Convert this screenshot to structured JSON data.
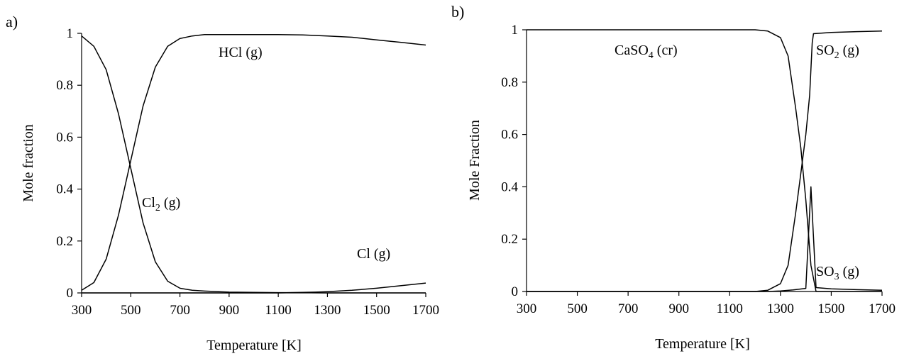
{
  "chart_data": [
    {
      "type": "line",
      "panel_label": "a)",
      "xlabel": "Temperature [K]",
      "ylabel": "Mole fraction",
      "xlim": [
        300,
        1700
      ],
      "ylim": [
        0,
        1
      ],
      "xticks": [
        "300",
        "500",
        "700",
        "900",
        "1100",
        "1300",
        "1500",
        "1700"
      ],
      "yticks": [
        "0",
        "0.2",
        "0.4",
        "0.6",
        "0.8",
        "1"
      ],
      "grid": false,
      "legend": "none",
      "series": [
        {
          "name": "HCl (g)",
          "label_parts": [
            "HCl (g)"
          ],
          "x": [
            300,
            350,
            400,
            450,
            500,
            550,
            600,
            650,
            700,
            750,
            800,
            900,
            1000,
            1100,
            1200,
            1300,
            1400,
            1500,
            1600,
            1700
          ],
          "y": [
            0.01,
            0.04,
            0.13,
            0.3,
            0.51,
            0.72,
            0.87,
            0.95,
            0.98,
            0.99,
            0.995,
            0.995,
            0.995,
            0.995,
            0.994,
            0.99,
            0.985,
            0.975,
            0.965,
            0.955
          ]
        },
        {
          "name": "Cl2 (g)",
          "label_parts": [
            "Cl",
            "2",
            " (g)"
          ],
          "x": [
            300,
            350,
            400,
            450,
            500,
            550,
            600,
            650,
            700,
            750,
            800,
            900,
            1000,
            1100,
            1200,
            1300,
            1400,
            1500,
            1600,
            1700
          ],
          "y": [
            0.99,
            0.95,
            0.86,
            0.69,
            0.48,
            0.27,
            0.12,
            0.045,
            0.018,
            0.01,
            0.007,
            0.003,
            0.002,
            0.001,
            0.001,
            0.0,
            0.0,
            0.0,
            0.0,
            0.0
          ]
        },
        {
          "name": "Cl (g)",
          "label_parts": [
            "Cl (g)"
          ],
          "x": [
            300,
            900,
            1100,
            1250,
            1300,
            1400,
            1500,
            1600,
            1700
          ],
          "y": [
            0.0,
            0.0,
            0.0,
            0.003,
            0.005,
            0.01,
            0.018,
            0.028,
            0.038
          ]
        }
      ]
    },
    {
      "type": "line",
      "panel_label": "b)",
      "xlabel": "Temperature [K]",
      "ylabel": "Mole Fraction",
      "xlim": [
        300,
        1700
      ],
      "ylim": [
        0,
        1
      ],
      "xticks": [
        "300",
        "500",
        "700",
        "900",
        "1100",
        "1300",
        "1500",
        "1700"
      ],
      "yticks": [
        "0",
        "0.2",
        "0.4",
        "0.6",
        "0.8",
        "1"
      ],
      "grid": false,
      "legend": "none",
      "series": [
        {
          "name": "CaSO4 (cr)",
          "label_parts": [
            "CaSO",
            "4",
            " (cr)"
          ],
          "x": [
            300,
            1000,
            1200,
            1250,
            1300,
            1330,
            1360,
            1380,
            1400,
            1420,
            1440,
            1500,
            1700
          ],
          "y": [
            1.0,
            1.0,
            1.0,
            0.995,
            0.97,
            0.9,
            0.7,
            0.55,
            0.35,
            0.1,
            0.0,
            0.0,
            0.0
          ]
        },
        {
          "name": "SO2 (g)",
          "label_parts": [
            "SO",
            "2",
            " (g)"
          ],
          "x": [
            300,
            1200,
            1250,
            1300,
            1330,
            1360,
            1380,
            1400,
            1415,
            1425,
            1430,
            1500,
            1600,
            1700
          ],
          "y": [
            0.0,
            0.0,
            0.005,
            0.03,
            0.1,
            0.3,
            0.45,
            0.6,
            0.75,
            0.95,
            0.985,
            0.99,
            0.993,
            0.995
          ]
        },
        {
          "name": "SO3 (g)",
          "label_parts": [
            "SO",
            "3",
            " (g)"
          ],
          "x": [
            300,
            1250,
            1300,
            1350,
            1400,
            1420,
            1440,
            1500,
            1600,
            1700
          ],
          "y": [
            0.0,
            0.0,
            0.002,
            0.006,
            0.012,
            0.4,
            0.015,
            0.01,
            0.007,
            0.005
          ]
        }
      ]
    }
  ]
}
